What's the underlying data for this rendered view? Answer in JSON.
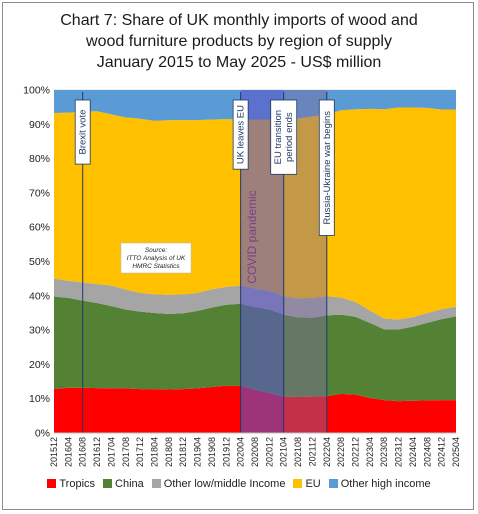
{
  "chart_data": {
    "type": "area",
    "stacked": true,
    "title_lines": [
      "Chart 7: Share of UK monthly imports of wood and",
      "wood furniture products by region of supply",
      "January 2015 to May 2025 - US$ million"
    ],
    "x_tick_labels": [
      "201512",
      "201604",
      "201608",
      "201612",
      "201704",
      "201708",
      "201712",
      "201804",
      "201808",
      "201812",
      "201904",
      "201908",
      "201912",
      "202004",
      "202008",
      "202012",
      "202104",
      "202108",
      "202112",
      "202204",
      "202208",
      "202212",
      "202304",
      "202308",
      "202312",
      "202404",
      "202408",
      "202412",
      "202504"
    ],
    "y_tick_labels": [
      "0%",
      "10%",
      "20%",
      "30%",
      "40%",
      "50%",
      "60%",
      "70%",
      "80%",
      "90%",
      "100%"
    ],
    "ylim": [
      0,
      100
    ],
    "grid": true,
    "legend_position": "bottom",
    "x": [
      "201512",
      "201604",
      "201608",
      "201612",
      "201704",
      "201708",
      "201712",
      "201804",
      "201808",
      "201812",
      "201904",
      "201908",
      "201912",
      "202004",
      "202008",
      "202012",
      "202104",
      "202108",
      "202112",
      "202204",
      "202208",
      "202212",
      "202304",
      "202308",
      "202312",
      "202404",
      "202408",
      "202412",
      "202504"
    ],
    "series": [
      {
        "name": "Tropics",
        "color": "#ff0000",
        "values": [
          12.8,
          13.2,
          13.2,
          13.1,
          13.0,
          13.0,
          12.8,
          12.8,
          12.7,
          12.8,
          13.0,
          13.4,
          13.8,
          13.7,
          12.6,
          11.6,
          10.6,
          10.5,
          10.6,
          10.7,
          11.4,
          11.2,
          10.2,
          9.6,
          9.3,
          9.4,
          9.5,
          9.6,
          9.6
        ]
      },
      {
        "name": "China",
        "color": "#548235",
        "values": [
          27.0,
          26.2,
          25.4,
          24.8,
          24.0,
          23.0,
          22.6,
          22.2,
          22.0,
          22.1,
          22.6,
          23.2,
          23.6,
          24.0,
          24.1,
          24.4,
          23.9,
          23.2,
          23.0,
          23.6,
          23.1,
          22.7,
          21.9,
          20.6,
          20.9,
          21.6,
          22.6,
          23.6,
          24.4
        ]
      },
      {
        "name": "Other low/middle Income",
        "color": "#a5a5a5",
        "values": [
          5.2,
          5.0,
          5.3,
          5.5,
          6.0,
          5.8,
          5.5,
          5.4,
          5.6,
          5.5,
          5.3,
          5.3,
          5.2,
          5.3,
          5.4,
          5.4,
          5.4,
          5.6,
          5.8,
          5.6,
          5.0,
          4.3,
          3.6,
          3.2,
          2.9,
          2.8,
          2.9,
          2.9,
          2.8
        ]
      },
      {
        "name": "EU",
        "color": "#ffc000",
        "values": [
          48.3,
          49.0,
          49.8,
          50.4,
          49.9,
          50.2,
          50.7,
          50.6,
          50.9,
          50.8,
          50.3,
          49.5,
          48.9,
          48.4,
          49.3,
          50.0,
          51.3,
          52.4,
          52.9,
          53.0,
          54.6,
          56.2,
          58.8,
          61.0,
          61.8,
          61.1,
          59.8,
          58.2,
          57.5
        ]
      },
      {
        "name": "Other high income",
        "color": "#5b9bd5",
        "values": [
          6.7,
          6.6,
          6.3,
          6.2,
          7.1,
          8.0,
          8.4,
          9.0,
          8.8,
          8.8,
          8.8,
          8.6,
          8.5,
          8.6,
          8.6,
          8.6,
          8.8,
          8.3,
          7.7,
          7.1,
          5.9,
          5.6,
          5.5,
          5.6,
          5.1,
          5.1,
          5.2,
          5.7,
          5.7
        ]
      }
    ],
    "shaded_periods": [
      {
        "from": "202004",
        "to": "202104",
        "color": "#5b55c9",
        "opacity": 0.6
      },
      {
        "from": "202104",
        "to": "202204",
        "color": "#7a6aa0",
        "opacity": 0.45
      }
    ],
    "annotations": [
      {
        "text": "Brexit vote",
        "at": "201608"
      },
      {
        "text": "UK leaves EU",
        "at": "202004"
      },
      {
        "text": "EU transition period ends",
        "lines": [
          "EU transition",
          "period ends"
        ],
        "at": "202104"
      },
      {
        "text": "Russia-Ukraine war begins",
        "at": "202204"
      }
    ],
    "covid_label": "COVID pandemic",
    "source_note": [
      "Source:",
      "ITTO Analysis of UK",
      "HMRC Statistics"
    ]
  }
}
